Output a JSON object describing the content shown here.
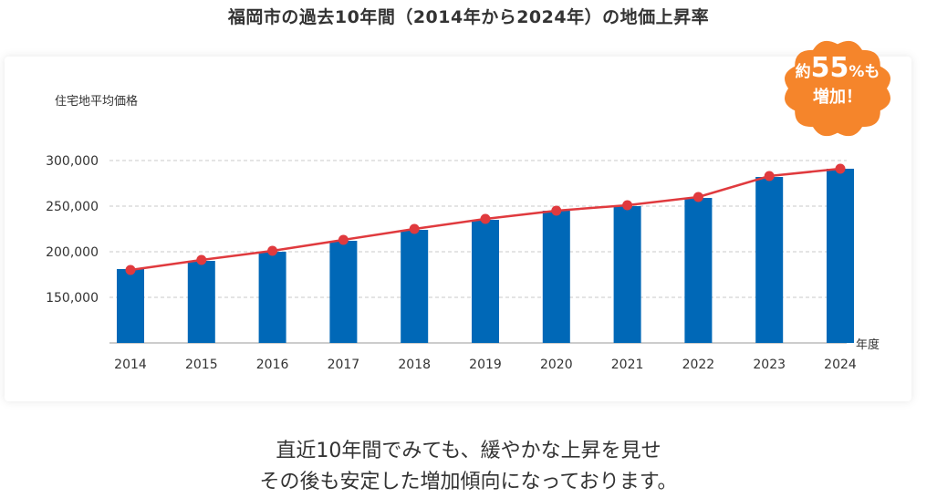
{
  "title": "福岡市の過去10年間（2014年から2024年）の地価上昇率",
  "badge": {
    "prefix": "約",
    "number": "55",
    "unit": "%",
    "suffix": "も",
    "line2": "増加！",
    "color": "#f5852b"
  },
  "caption": {
    "line1": "直近10年間でみても、緩やかな上昇を見せ",
    "line2": "その後も安定した増加傾向になっております。"
  },
  "chart_data": {
    "type": "bar",
    "ylabel": "住宅地平均価格",
    "xlabel": "年度",
    "categories": [
      "2014",
      "2015",
      "2016",
      "2017",
      "2018",
      "2019",
      "2020",
      "2021",
      "2022",
      "2023",
      "2024"
    ],
    "series": [
      {
        "type": "bar",
        "values": [
          181000,
          190000,
          200000,
          212000,
          224000,
          235000,
          245000,
          250000,
          259000,
          282000,
          291000
        ],
        "color": "#0068b7"
      },
      {
        "type": "line",
        "values": [
          180000,
          191000,
          201000,
          213000,
          225000,
          236000,
          245000,
          251000,
          260000,
          283000,
          291000
        ],
        "color": "#e03a3e"
      }
    ],
    "yticks": [
      "150,000",
      "200,000",
      "250,000",
      "300,000"
    ],
    "ytick_values": [
      150000,
      200000,
      250000,
      300000
    ],
    "ylim": [
      100000,
      300000
    ],
    "grid": true
  }
}
